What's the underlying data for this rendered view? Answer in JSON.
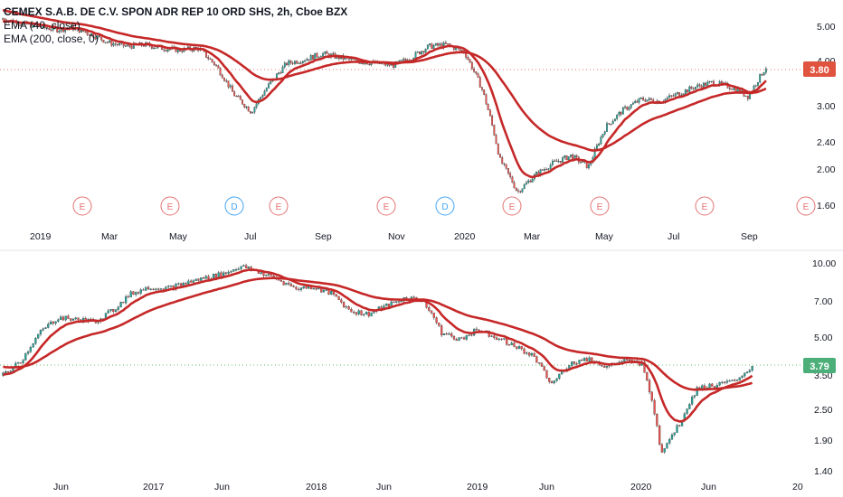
{
  "legend": {
    "title": "CEMEX S.A.B. DE C.V. SPON ADR REP 10 ORD SHS, 2h, Cboe BZX",
    "ema40": "EMA (40, close)",
    "ema200": "EMA (200, close, 0)"
  },
  "colors": {
    "ema": "#c62828",
    "up": "#26a69a",
    "down": "#ef5350",
    "badge_top": "#e0533e",
    "badge_bottom": "#4caf7a",
    "event_E": "#e57373",
    "event_D": "#42a5f5",
    "dotted": "#e57373"
  },
  "chart_data": [
    {
      "type": "candlestick",
      "title": "CEMEX S.A.B. DE C.V. SPON ADR REP 10 ORD SHS, 2h, Cboe BZX",
      "scale": "log",
      "y_ticks": [
        "5.00",
        "4.00",
        "3.00",
        "2.40",
        "2.00",
        "1.60"
      ],
      "x_ticks": [
        "2019",
        "Mar",
        "May",
        "Jul",
        "Sep",
        "Nov",
        "2020",
        "Mar",
        "May",
        "Jul",
        "Sep"
      ],
      "last_price_label": "3.80",
      "events": [
        "E",
        "E",
        "D",
        "E",
        "E",
        "D",
        "E",
        "E",
        "E",
        "E"
      ],
      "price_path": [
        5.2,
        5.05,
        4.95,
        4.85,
        4.9,
        4.7,
        4.45,
        4.35,
        4.4,
        4.3,
        4.25,
        4.3,
        3.85,
        3.2,
        2.85,
        3.4,
        3.9,
        4.0,
        4.15,
        4.05,
        3.95,
        3.9,
        3.85,
        4.05,
        4.35,
        4.4,
        4.2,
        3.3,
        2.1,
        1.7,
        1.9,
        2.05,
        2.15,
        2.0,
        2.6,
        2.9,
        3.1,
        3.05,
        3.2,
        3.35,
        3.45,
        3.35,
        3.15,
        3.8
      ]
    },
    {
      "type": "candlestick",
      "scale": "log",
      "y_ticks": [
        "10.00",
        "7.00",
        "5.00",
        "3.50",
        "2.50",
        "1.90",
        "1.40"
      ],
      "x_ticks": [
        "Jun",
        "2017",
        "Jun",
        "2018",
        "Jun",
        "2019",
        "Jun",
        "2020",
        "Jun",
        "20"
      ],
      "last_price_label": "3.79",
      "price_path": [
        3.5,
        4.0,
        5.2,
        6.0,
        5.9,
        5.8,
        6.4,
        7.5,
        8.0,
        7.9,
        8.3,
        8.7,
        9.0,
        9.7,
        9.2,
        8.6,
        7.9,
        8.0,
        7.5,
        6.4,
        6.2,
        6.7,
        7.2,
        7.1,
        5.2,
        4.9,
        5.4,
        5.0,
        4.6,
        4.2,
        3.2,
        3.9,
        4.1,
        3.8,
        4.0,
        3.9,
        1.7,
        2.2,
        3.1,
        3.2,
        3.3,
        3.79
      ]
    }
  ]
}
